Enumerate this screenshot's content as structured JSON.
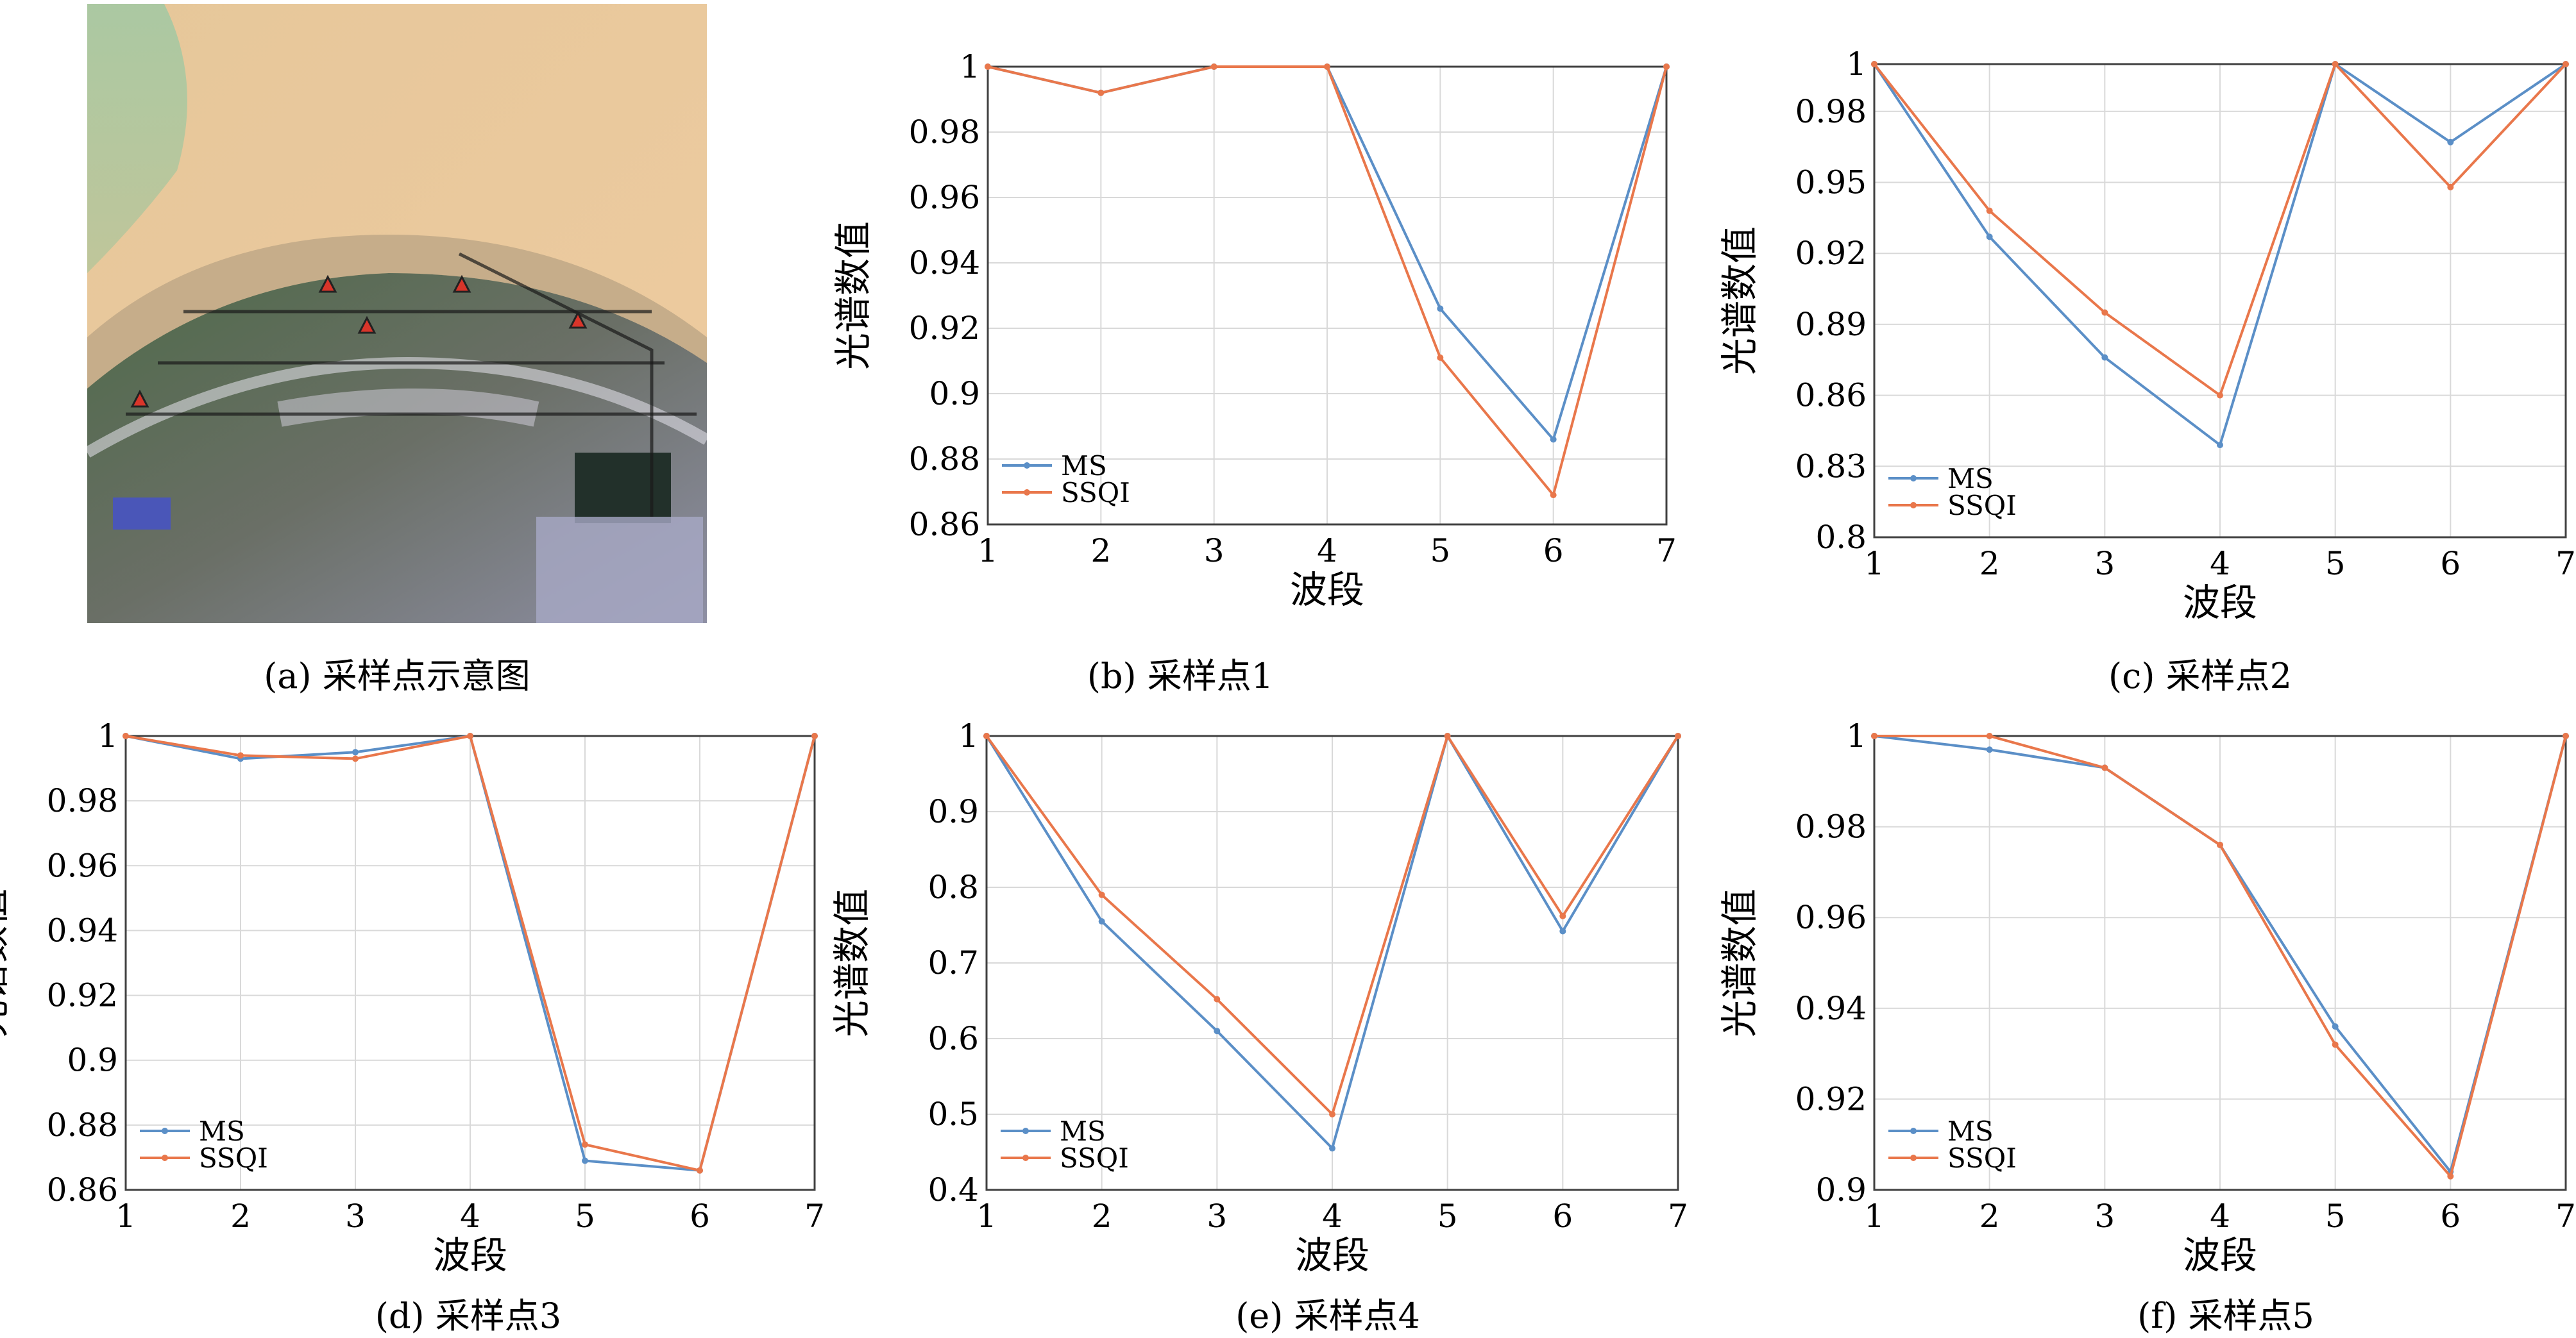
{
  "figure": {
    "captions": {
      "a": "(a) 采样点示意图",
      "b": "(b) 采样点1",
      "c": "(c) 采样点2",
      "d": "(d) 采样点3",
      "e": "(e) 采样点4",
      "f": "(f) 采样点5"
    },
    "legend": [
      "MS",
      "SSQI"
    ],
    "xlabel": "波段",
    "ylabel": "光谱数值",
    "colors": {
      "MS": "#5b8fc7",
      "SSQI": "#e9774b",
      "grid": "#d9d9d9",
      "axis": "#404040"
    }
  },
  "chart_data": [
    {
      "type": "line",
      "panel": "b",
      "x": [
        1,
        2,
        3,
        4,
        5,
        6,
        7
      ],
      "series": [
        {
          "name": "MS",
          "values": [
            1.0,
            0.992,
            1.0,
            1.0,
            0.926,
            0.886,
            1.0
          ]
        },
        {
          "name": "SSQI",
          "values": [
            1.0,
            0.992,
            1.0,
            1.0,
            0.911,
            0.869,
            1.0
          ]
        }
      ],
      "xlim": [
        1,
        7
      ],
      "ylim": [
        0.86,
        1.0
      ],
      "yticks": [
        0.86,
        0.88,
        0.9,
        0.92,
        0.94,
        0.96,
        0.98,
        1
      ],
      "ytick_labels": [
        "0.86",
        "0.88",
        "0.9",
        "0.92",
        "0.94",
        "0.96",
        "0.98",
        "1"
      ],
      "xlabel": "波段",
      "ylabel": "光谱数值",
      "grid": true,
      "legend_position": "bottom-left"
    },
    {
      "type": "line",
      "panel": "c",
      "x": [
        1,
        2,
        3,
        4,
        5,
        6,
        7
      ],
      "series": [
        {
          "name": "MS",
          "values": [
            1.0,
            0.927,
            0.876,
            0.839,
            1.0,
            0.967,
            1.0
          ]
        },
        {
          "name": "SSQI",
          "values": [
            1.0,
            0.938,
            0.895,
            0.86,
            1.0,
            0.948,
            1.0
          ]
        }
      ],
      "xlim": [
        1,
        7
      ],
      "ylim": [
        0.8,
        1.0
      ],
      "yticks": [
        0.8,
        0.83,
        0.86,
        0.89,
        0.92,
        0.95,
        0.98,
        1
      ],
      "ytick_labels": [
        "0.8",
        "0.83",
        "0.86",
        "0.89",
        "0.92",
        "0.95",
        "0.98",
        "1"
      ],
      "xlabel": "波段",
      "ylabel": "光谱数值",
      "grid": true,
      "legend_position": "bottom-left"
    },
    {
      "type": "line",
      "panel": "d",
      "x": [
        1,
        2,
        3,
        4,
        5,
        6,
        7
      ],
      "series": [
        {
          "name": "MS",
          "values": [
            1.0,
            0.993,
            0.995,
            1.0,
            0.869,
            0.866,
            1.0
          ]
        },
        {
          "name": "SSQI",
          "values": [
            1.0,
            0.994,
            0.993,
            1.0,
            0.874,
            0.866,
            1.0
          ]
        }
      ],
      "xlim": [
        1,
        7
      ],
      "ylim": [
        0.86,
        1.0
      ],
      "yticks": [
        0.86,
        0.88,
        0.9,
        0.92,
        0.94,
        0.96,
        0.98,
        1
      ],
      "ytick_labels": [
        "0.86",
        "0.88",
        "0.9",
        "0.92",
        "0.94",
        "0.96",
        "0.98",
        "1"
      ],
      "xlabel": "波段",
      "ylabel": "光谱数值",
      "grid": true,
      "legend_position": "bottom-left"
    },
    {
      "type": "line",
      "panel": "e",
      "x": [
        1,
        2,
        3,
        4,
        5,
        6,
        7
      ],
      "series": [
        {
          "name": "MS",
          "values": [
            1.0,
            0.755,
            0.61,
            0.455,
            1.0,
            0.742,
            1.0
          ]
        },
        {
          "name": "SSQI",
          "values": [
            1.0,
            0.79,
            0.652,
            0.5,
            1.0,
            0.762,
            1.0
          ]
        }
      ],
      "xlim": [
        1,
        7
      ],
      "ylim": [
        0.4,
        1.0
      ],
      "yticks": [
        0.4,
        0.5,
        0.6,
        0.7,
        0.8,
        0.9,
        1
      ],
      "ytick_labels": [
        "0.4",
        "0.5",
        "0.6",
        "0.7",
        "0.8",
        "0.9",
        "1"
      ],
      "xlabel": "波段",
      "ylabel": "光谱数值",
      "grid": true,
      "legend_position": "bottom-left"
    },
    {
      "type": "line",
      "panel": "f",
      "x": [
        1,
        2,
        3,
        4,
        5,
        6,
        7
      ],
      "series": [
        {
          "name": "MS",
          "values": [
            1.0,
            0.997,
            0.993,
            0.976,
            0.936,
            0.904,
            1.0
          ]
        },
        {
          "name": "SSQI",
          "values": [
            1.0,
            1.0,
            0.993,
            0.976,
            0.932,
            0.903,
            1.0
          ]
        }
      ],
      "xlim": [
        1,
        7
      ],
      "ylim": [
        0.9,
        1.0
      ],
      "yticks": [
        0.9,
        0.92,
        0.94,
        0.96,
        0.98,
        1
      ],
      "ytick_labels": [
        "0.9",
        "0.92",
        "0.94",
        "0.96",
        "0.98",
        "1"
      ],
      "xlabel": "波段",
      "ylabel": "光谱数值",
      "grid": true,
      "legend_position": "bottom-left"
    }
  ]
}
